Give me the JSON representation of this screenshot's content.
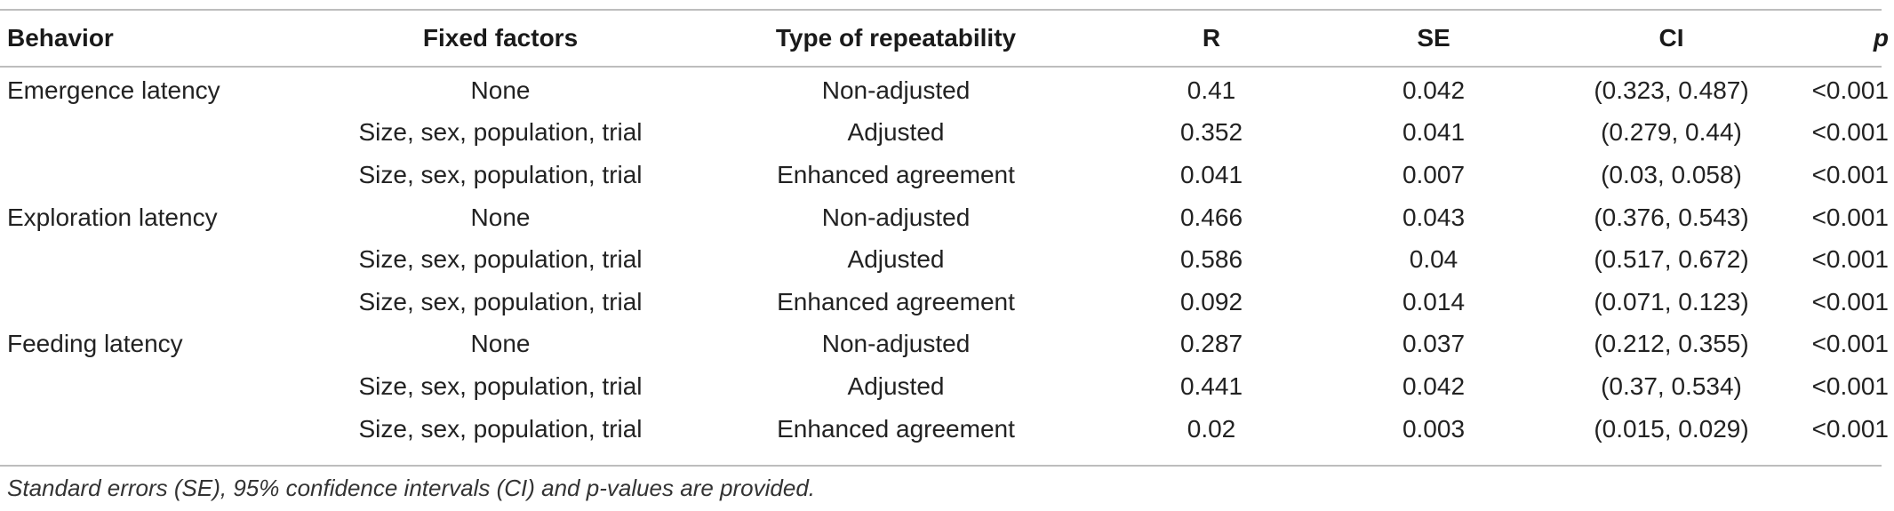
{
  "table": {
    "headers": {
      "behavior": "Behavior",
      "fixed_factors": "Fixed factors",
      "type": "Type of repeatability",
      "r": "R",
      "se": "SE",
      "ci": "CI",
      "p": "p"
    },
    "rows": [
      {
        "behavior": "Emergence latency",
        "fixed": "None",
        "type": "Non-adjusted",
        "r": "0.41",
        "se": "0.042",
        "ci": "(0.323, 0.487)",
        "p": "<0.001"
      },
      {
        "behavior": "",
        "fixed": "Size, sex, population, trial",
        "type": "Adjusted",
        "r": "0.352",
        "se": "0.041",
        "ci": "(0.279, 0.44)",
        "p": "<0.001"
      },
      {
        "behavior": "",
        "fixed": "Size, sex, population, trial",
        "type": "Enhanced agreement",
        "r": "0.041",
        "se": "0.007",
        "ci": "(0.03, 0.058)",
        "p": "<0.001"
      },
      {
        "behavior": "Exploration latency",
        "fixed": "None",
        "type": "Non-adjusted",
        "r": "0.466",
        "se": "0.043",
        "ci": "(0.376, 0.543)",
        "p": "<0.001"
      },
      {
        "behavior": "",
        "fixed": "Size, sex, population, trial",
        "type": "Adjusted",
        "r": "0.586",
        "se": "0.04",
        "ci": "(0.517, 0.672)",
        "p": "<0.001"
      },
      {
        "behavior": "",
        "fixed": "Size, sex, population, trial",
        "type": "Enhanced agreement",
        "r": "0.092",
        "se": "0.014",
        "ci": "(0.071, 0.123)",
        "p": "<0.001"
      },
      {
        "behavior": "Feeding latency",
        "fixed": "None",
        "type": "Non-adjusted",
        "r": "0.287",
        "se": "0.037",
        "ci": "(0.212, 0.355)",
        "p": "<0.001"
      },
      {
        "behavior": "",
        "fixed": "Size, sex, population, trial",
        "type": "Adjusted",
        "r": "0.441",
        "se": "0.042",
        "ci": "(0.37, 0.534)",
        "p": "<0.001"
      },
      {
        "behavior": "",
        "fixed": "Size, sex, population, trial",
        "type": "Enhanced agreement",
        "r": "0.02",
        "se": "0.003",
        "ci": "(0.015, 0.029)",
        "p": "<0.001"
      }
    ]
  },
  "footnote": "Standard errors (SE), 95% confidence intervals (CI) and p-values are provided."
}
